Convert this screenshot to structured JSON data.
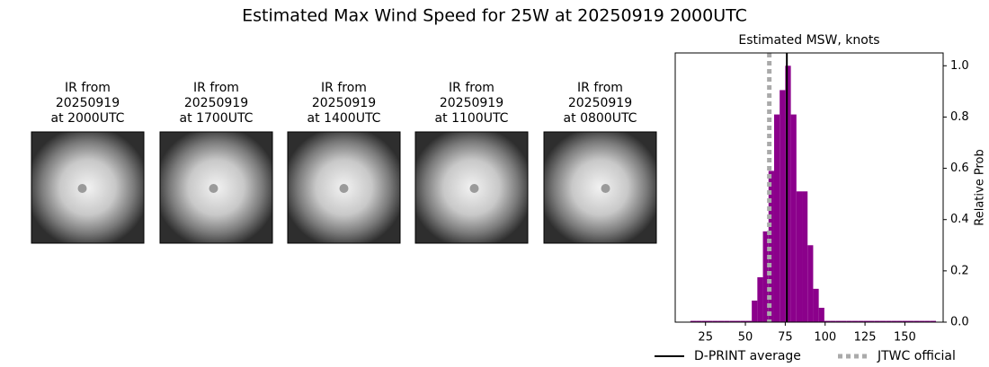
{
  "figure_title": "Estimated Max Wind Speed for 25W at 20250919 2000UTC",
  "panels": [
    {
      "lines": [
        "IR from",
        "20250919",
        "at 2000UTC"
      ]
    },
    {
      "lines": [
        "IR from",
        "20250919",
        "at 1700UTC"
      ]
    },
    {
      "lines": [
        "IR from",
        "20250919",
        "at 1400UTC"
      ]
    },
    {
      "lines": [
        "IR from",
        "20250919",
        "at 1100UTC"
      ]
    },
    {
      "lines": [
        "IR from",
        "20250919",
        "at 0800UTC"
      ]
    }
  ],
  "chart_data": {
    "type": "histogram",
    "title": "Estimated MSW, knots",
    "ylabel": "Relative Prob",
    "color": "#8b008b",
    "bins": [
      15.5,
      19,
      22.5,
      26,
      29.5,
      33,
      36.5,
      40,
      43.5,
      47,
      50.5,
      54,
      57.5,
      61,
      64.5,
      68,
      71.5,
      75,
      78.5,
      82,
      85.5,
      89,
      92.5,
      96,
      99.5,
      103,
      106.5,
      110,
      113.5,
      117,
      120.5,
      124,
      127.5,
      131,
      134.5,
      138,
      141.5,
      145,
      148.5,
      152,
      155.5,
      159,
      162.5,
      166,
      169.5
    ],
    "counts": [
      0.005,
      0.005,
      0.005,
      0.005,
      0.005,
      0.005,
      0.005,
      0.005,
      0.005,
      0.005,
      0.005,
      0.084,
      0.175,
      0.354,
      0.59,
      0.81,
      0.905,
      1.0,
      0.81,
      0.51,
      0.51,
      0.3,
      0.13,
      0.056,
      0.005,
      0.005,
      0.005,
      0.005,
      0.005,
      0.005,
      0.005,
      0.005,
      0.005,
      0.005,
      0.005,
      0.005,
      0.005,
      0.005,
      0.005,
      0.005,
      0.005,
      0.005,
      0.005,
      0.005
    ],
    "xlim": [
      6,
      174
    ],
    "xticks": [
      25,
      50,
      75,
      100,
      125,
      150
    ],
    "ylim": [
      0,
      1.05
    ],
    "yticks": [
      {
        "value": 0,
        "label": "0.0"
      },
      0.2,
      0.4,
      0.6,
      0.8,
      {
        "value": 1,
        "label": "1.0"
      }
    ],
    "vlines": [
      {
        "name": "D-PRINT average",
        "value": 76,
        "color": "#000000",
        "style": "solid"
      },
      {
        "name": "JTWC official",
        "value": 65,
        "color": "#aaaaaa",
        "style": "dotted"
      }
    ],
    "legend": "lower center"
  }
}
